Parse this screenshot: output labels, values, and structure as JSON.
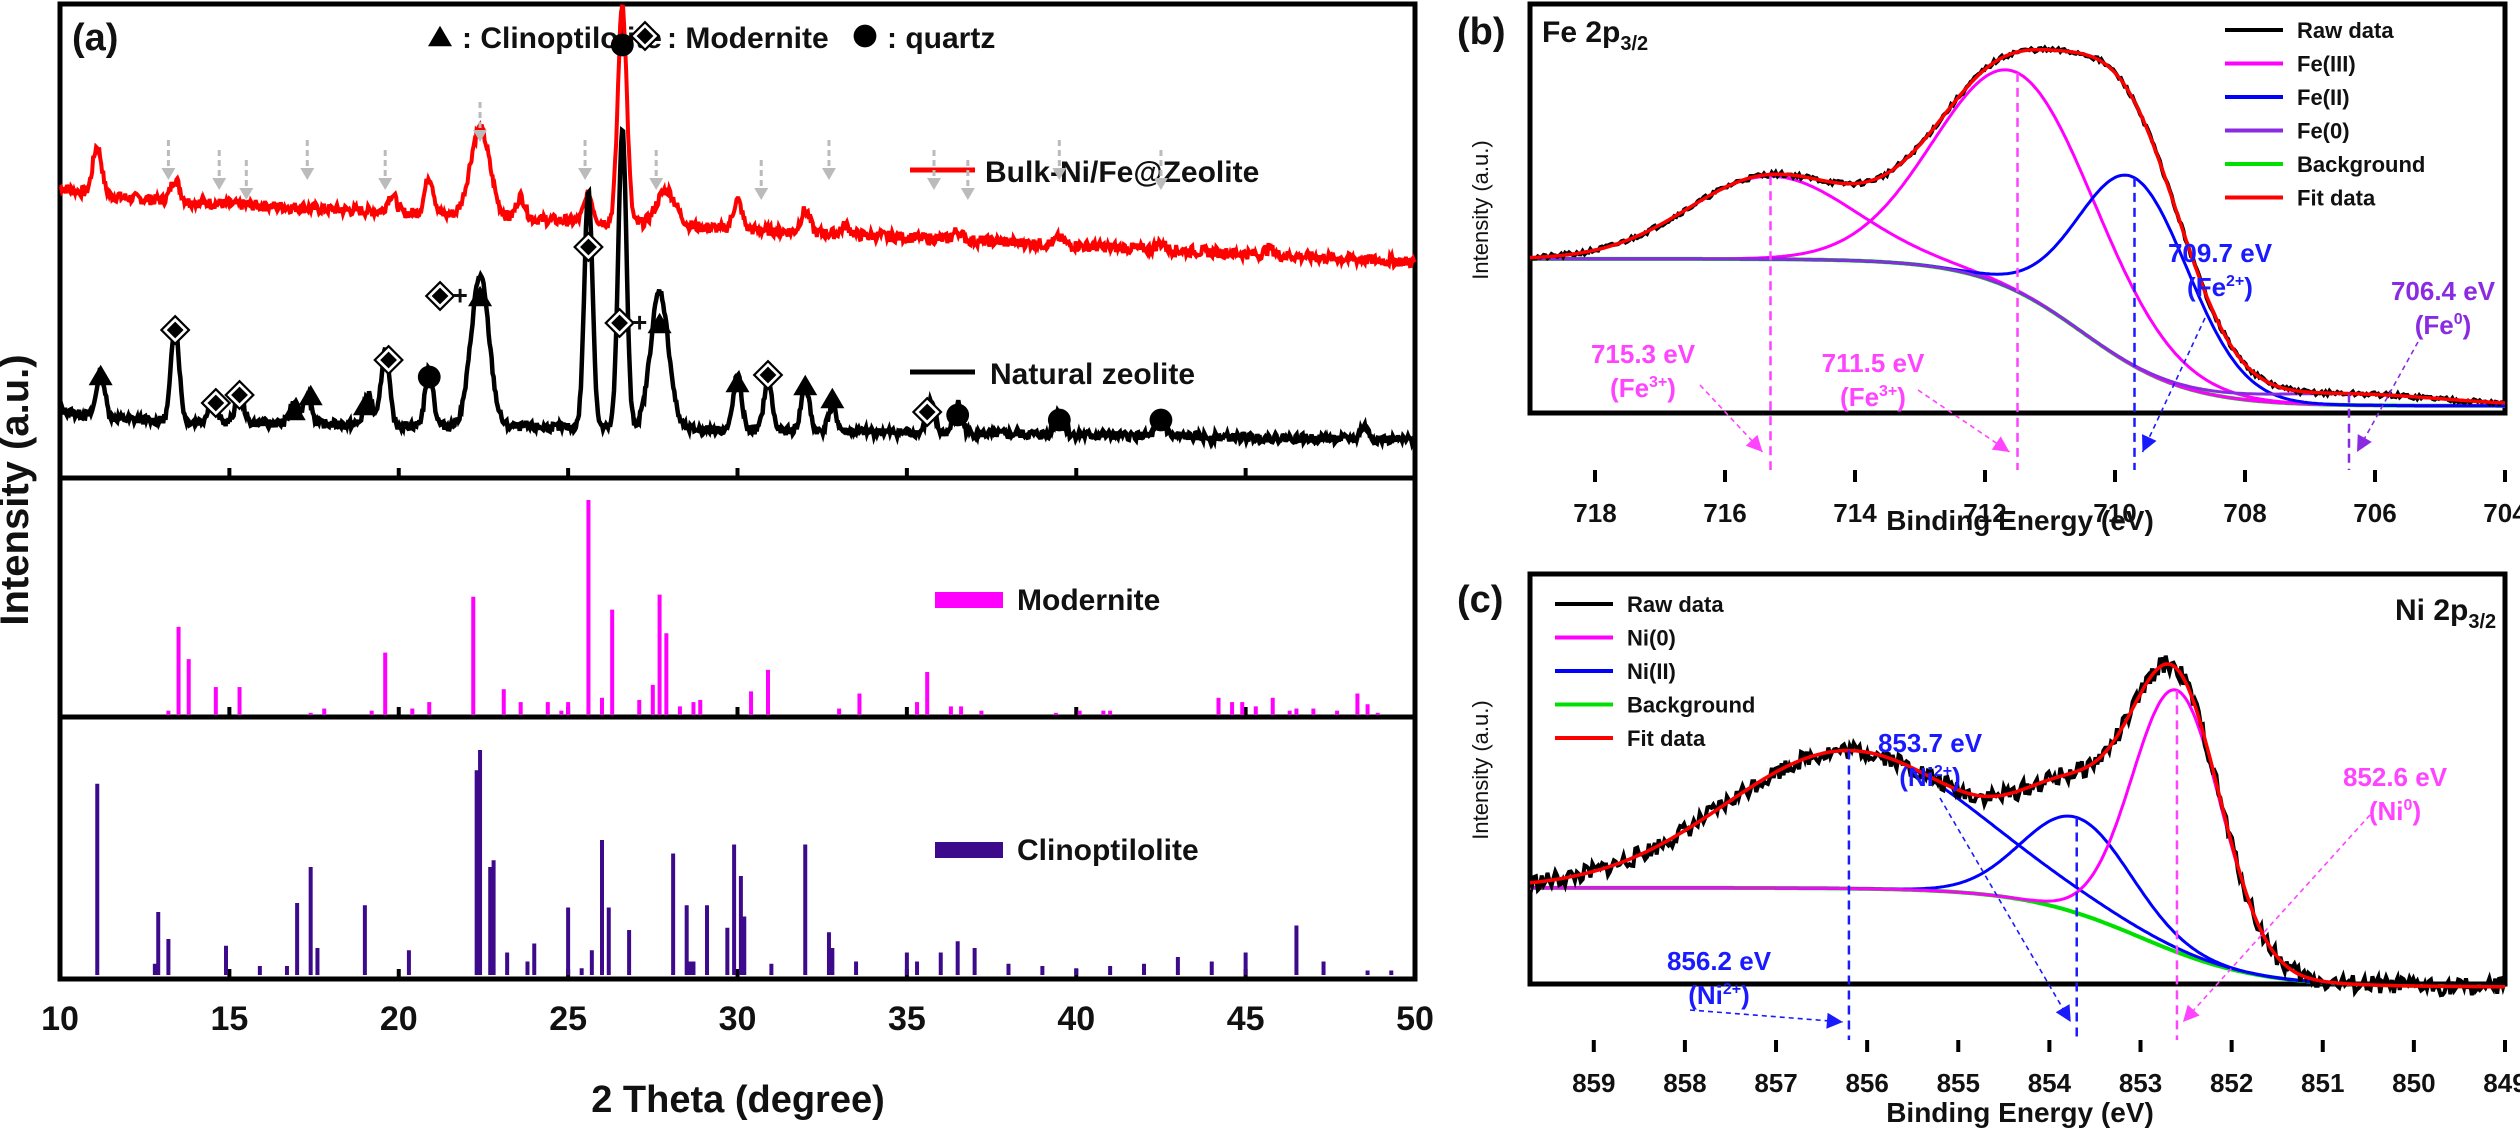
{
  "chart_data": [
    {
      "panel": "(a)",
      "type": "line",
      "title": "",
      "xlabel": "2 Theta (degree)",
      "ylabel": "Intensity (a.u.)",
      "xlim": [
        10,
        50
      ],
      "xticks": [
        10,
        15,
        20,
        25,
        30,
        35,
        40,
        45,
        50
      ],
      "grid": false,
      "marker_legend": [
        {
          "symbol": "triangle",
          "label": ": Clinoptilolite"
        },
        {
          "symbol": "diamond",
          "label": ": Modernite"
        },
        {
          "symbol": "circle",
          "label": ": quartz"
        }
      ],
      "series": [
        {
          "name": "Bulk-Ni/Fe@Zeolite",
          "color": "#ff0000",
          "peaks": [
            [
              11.1,
              0.22
            ],
            [
              13.4,
              0.1
            ],
            [
              19.8,
              0.08
            ],
            [
              20.9,
              0.17
            ],
            [
              22.4,
              0.4
            ],
            [
              23.6,
              0.1
            ],
            [
              25.6,
              0.12
            ],
            [
              26.6,
              1.0
            ],
            [
              27.9,
              0.16
            ],
            [
              30.0,
              0.13
            ],
            [
              32.0,
              0.1
            ],
            [
              33.2,
              0.04
            ],
            [
              36.5,
              0.04
            ],
            [
              39.5,
              0.03
            ],
            [
              42.5,
              0.03
            ],
            [
              45.7,
              0.03
            ]
          ],
          "baseline_start": 0.3,
          "baseline_end": 0.0,
          "arrow_markers_2theta": [
            13.2,
            14.7,
            15.5,
            17.3,
            19.6,
            22.4,
            25.5,
            27.6,
            30.7,
            32.7,
            35.8,
            36.8,
            39.5,
            42.5
          ]
        },
        {
          "name": "Natural zeolite",
          "color": "#000000",
          "peaks": [
            [
              11.2,
              0.18
            ],
            [
              13.4,
              0.38
            ],
            [
              14.5,
              0.1
            ],
            [
              15.3,
              0.12
            ],
            [
              16.9,
              0.08
            ],
            [
              17.3,
              0.12
            ],
            [
              19.1,
              0.12
            ],
            [
              19.6,
              0.3
            ],
            [
              20.9,
              0.22
            ],
            [
              22.4,
              0.6
            ],
            [
              25.6,
              0.95
            ],
            [
              26.6,
              1.2
            ],
            [
              27.7,
              0.55
            ],
            [
              30.0,
              0.22
            ],
            [
              30.9,
              0.2
            ],
            [
              32.0,
              0.18
            ],
            [
              32.8,
              0.1
            ],
            [
              35.7,
              0.12
            ],
            [
              36.5,
              0.12
            ],
            [
              39.5,
              0.1
            ],
            [
              42.5,
              0.08
            ],
            [
              48.5,
              0.05
            ]
          ],
          "baseline_start": 0.08,
          "baseline_end": 0.0,
          "markers": [
            {
              "x": 11.2,
              "symbols": [
                "triangle"
              ]
            },
            {
              "x": 13.4,
              "symbols": [
                "diamond"
              ]
            },
            {
              "x": 14.6,
              "symbols": [
                "diamond"
              ]
            },
            {
              "x": 15.3,
              "symbols": [
                "diamond"
              ]
            },
            {
              "x": 16.9,
              "symbols": [
                "triangle"
              ]
            },
            {
              "x": 17.4,
              "symbols": [
                "triangle"
              ]
            },
            {
              "x": 19.0,
              "symbols": [
                "triangle"
              ]
            },
            {
              "x": 19.7,
              "symbols": [
                "diamond"
              ]
            },
            {
              "x": 20.9,
              "symbols": [
                "circle"
              ]
            },
            {
              "x": 22.4,
              "symbols": [
                "diamond",
                "+",
                "triangle"
              ]
            },
            {
              "x": 25.6,
              "symbols": [
                "diamond"
              ]
            },
            {
              "x": 26.6,
              "symbols": [
                "circle"
              ]
            },
            {
              "x": 27.7,
              "symbols": [
                "diamond",
                "+",
                "triangle"
              ]
            },
            {
              "x": 30.0,
              "symbols": [
                "triangle"
              ]
            },
            {
              "x": 30.9,
              "symbols": [
                "diamond"
              ]
            },
            {
              "x": 32.0,
              "symbols": [
                "triangle"
              ]
            },
            {
              "x": 32.8,
              "symbols": [
                "triangle"
              ]
            },
            {
              "x": 35.6,
              "symbols": [
                "diamond"
              ]
            },
            {
              "x": 36.5,
              "symbols": [
                "circle"
              ]
            },
            {
              "x": 39.5,
              "symbols": [
                "circle"
              ]
            },
            {
              "x": 42.5,
              "symbols": [
                "circle"
              ]
            }
          ]
        }
      ],
      "reference_patterns": [
        {
          "name": "Modernite",
          "color": "#ff00ff",
          "type": "stick",
          "sticks": [
            [
              13.2,
              0.02
            ],
            [
              13.5,
              0.41
            ],
            [
              13.8,
              0.26
            ],
            [
              14.6,
              0.13
            ],
            [
              15.3,
              0.13
            ],
            [
              17.4,
              0.01
            ],
            [
              17.8,
              0.03
            ],
            [
              19.2,
              0.02
            ],
            [
              19.6,
              0.29
            ],
            [
              20.4,
              0.03
            ],
            [
              20.9,
              0.06
            ],
            [
              22.2,
              0.55
            ],
            [
              23.1,
              0.12
            ],
            [
              23.6,
              0.06
            ],
            [
              24.4,
              0.06
            ],
            [
              24.8,
              0.02
            ],
            [
              25.0,
              0.06
            ],
            [
              25.6,
              1.0
            ],
            [
              26.0,
              0.08
            ],
            [
              26.3,
              0.49
            ],
            [
              27.1,
              0.07
            ],
            [
              27.5,
              0.14
            ],
            [
              27.7,
              0.56
            ],
            [
              27.9,
              0.38
            ],
            [
              28.3,
              0.04
            ],
            [
              28.7,
              0.06
            ],
            [
              28.9,
              0.07
            ],
            [
              30.4,
              0.11
            ],
            [
              30.9,
              0.21
            ],
            [
              33.0,
              0.03
            ],
            [
              33.6,
              0.1
            ],
            [
              35.3,
              0.06
            ],
            [
              35.6,
              0.2
            ],
            [
              36.3,
              0.04
            ],
            [
              36.6,
              0.04
            ],
            [
              37.2,
              0.02
            ],
            [
              39.4,
              0.01
            ],
            [
              40.1,
              0.02
            ],
            [
              40.8,
              0.02
            ],
            [
              41.0,
              0.02
            ],
            [
              44.2,
              0.08
            ],
            [
              44.6,
              0.06
            ],
            [
              44.9,
              0.06
            ],
            [
              45.3,
              0.04
            ],
            [
              45.8,
              0.08
            ],
            [
              46.3,
              0.02
            ],
            [
              46.5,
              0.03
            ],
            [
              47.0,
              0.03
            ],
            [
              47.7,
              0.02
            ],
            [
              48.3,
              0.1
            ],
            [
              48.6,
              0.05
            ],
            [
              48.9,
              0.01
            ]
          ]
        },
        {
          "name": "Clinoptilolite",
          "color": "#3d0a8c",
          "type": "stick",
          "sticks": [
            [
              11.1,
              0.85
            ],
            [
              12.8,
              0.05
            ],
            [
              12.9,
              0.28
            ],
            [
              13.2,
              0.16
            ],
            [
              14.9,
              0.13
            ],
            [
              15.9,
              0.04
            ],
            [
              16.7,
              0.04
            ],
            [
              17.0,
              0.32
            ],
            [
              17.4,
              0.48
            ],
            [
              17.6,
              0.12
            ],
            [
              19.0,
              0.31
            ],
            [
              20.3,
              0.11
            ],
            [
              22.3,
              0.91
            ],
            [
              22.4,
              1.0
            ],
            [
              22.7,
              0.48
            ],
            [
              22.8,
              0.51
            ],
            [
              23.2,
              0.1
            ],
            [
              23.8,
              0.06
            ],
            [
              24.0,
              0.14
            ],
            [
              25.0,
              0.3
            ],
            [
              25.4,
              0.03
            ],
            [
              25.7,
              0.11
            ],
            [
              26.0,
              0.6
            ],
            [
              26.2,
              0.3
            ],
            [
              26.8,
              0.2
            ],
            [
              28.1,
              0.54
            ],
            [
              28.5,
              0.31
            ],
            [
              28.6,
              0.06
            ],
            [
              28.7,
              0.06
            ],
            [
              29.1,
              0.31
            ],
            [
              29.7,
              0.21
            ],
            [
              29.9,
              0.58
            ],
            [
              30.1,
              0.44
            ],
            [
              30.2,
              0.26
            ],
            [
              31.0,
              0.05
            ],
            [
              32.0,
              0.58
            ],
            [
              32.7,
              0.19
            ],
            [
              32.8,
              0.12
            ],
            [
              33.5,
              0.06
            ],
            [
              35.0,
              0.1
            ],
            [
              35.3,
              0.06
            ],
            [
              36.0,
              0.1
            ],
            [
              36.5,
              0.15
            ],
            [
              37.0,
              0.12
            ],
            [
              38.0,
              0.05
            ],
            [
              39.0,
              0.04
            ],
            [
              40.0,
              0.03
            ],
            [
              41.0,
              0.04
            ],
            [
              42.0,
              0.05
            ],
            [
              43.0,
              0.08
            ],
            [
              44.0,
              0.06
            ],
            [
              45.0,
              0.1
            ],
            [
              46.5,
              0.22
            ],
            [
              47.3,
              0.06
            ],
            [
              48.6,
              0.02
            ],
            [
              49.3,
              0.02
            ]
          ]
        }
      ]
    },
    {
      "panel": "(b)",
      "type": "line",
      "title": "Fe 2p",
      "title_sub": "3/2",
      "xlabel": "Binding Energy (eV)",
      "ylabel": "Intensity (a.u.)",
      "xlim": [
        719,
        704
      ],
      "x_reversed": true,
      "xticks": [
        718,
        716,
        714,
        712,
        710,
        708,
        706,
        704
      ],
      "grid": false,
      "legend_position": "top-right",
      "legend": [
        {
          "label": "Raw data",
          "color": "#000000"
        },
        {
          "label": "Fe(III)",
          "color": "#ff00ff"
        },
        {
          "label": "Fe(II)",
          "color": "#0000ff"
        },
        {
          "label": "Fe(0)",
          "color": "#8a2be2"
        },
        {
          "label": "Background",
          "color": "#00e000"
        },
        {
          "label": "Fit data",
          "color": "#ff0000"
        }
      ],
      "components": [
        {
          "name": "Fe(III)",
          "center": 715.3,
          "height": 0.22,
          "fwhm": 3.0,
          "color": "#ff00ff"
        },
        {
          "name": "Fe(III)",
          "center": 711.5,
          "height": 0.58,
          "fwhm": 2.9,
          "color": "#ff00ff"
        },
        {
          "name": "Fe(II)",
          "center": 709.7,
          "height": 0.5,
          "fwhm": 2.0,
          "color": "#0000ff"
        },
        {
          "name": "Fe(0)",
          "center": 706.4,
          "height": 0.03,
          "fwhm": 3.4,
          "color": "#8a2be2"
        }
      ],
      "background": {
        "high_be_level": 0.56,
        "low_be_level": 0.17,
        "step_center": 710.5,
        "step_width": 1.6
      },
      "ylim": [
        0,
        1.22
      ],
      "annotations": [
        {
          "text": "715.3 eV",
          "sub": "(Fe3+)",
          "x": 715.3,
          "color": "#ff44ff"
        },
        {
          "text": "711.5 eV",
          "sub": "(Fe3+)",
          "x": 711.5,
          "color": "#ff44ff"
        },
        {
          "text": "709.7 eV",
          "sub": "(Fe2+)",
          "x": 709.7,
          "color": "#1a1aff"
        },
        {
          "text": "706.4 eV",
          "sub": "(Fe0)",
          "x": 706.4,
          "color": "#8a2be2"
        }
      ]
    },
    {
      "panel": "(c)",
      "type": "line",
      "title": "Ni 2p",
      "title_sub": "3/2",
      "xlabel": "Binding Energy (eV)",
      "ylabel": "Intensity (a.u.)",
      "xlim": [
        859.7,
        849
      ],
      "x_reversed": true,
      "xticks": [
        859,
        858,
        857,
        856,
        855,
        854,
        853,
        852,
        851,
        850,
        849
      ],
      "grid": false,
      "legend_position": "top-left",
      "legend": [
        {
          "label": "Raw data",
          "color": "#000000"
        },
        {
          "label": "Ni(0)",
          "color": "#ff00ff"
        },
        {
          "label": "Ni(II)",
          "color": "#0000ff"
        },
        {
          "label": "Background",
          "color": "#00e000"
        },
        {
          "label": "Fit data",
          "color": "#ff0000"
        }
      ],
      "components": [
        {
          "name": "Ni(II)",
          "center": 856.2,
          "height": 0.39,
          "fwhm": 3.2,
          "color": "#0000ff"
        },
        {
          "name": "Ni(II)",
          "center": 853.7,
          "height": 0.27,
          "fwhm": 1.4,
          "color": "#0000ff"
        },
        {
          "name": "Ni(0)",
          "center": 852.6,
          "height": 0.74,
          "fwhm": 1.15,
          "color": "#ff00ff"
        }
      ],
      "background": {
        "high_be_level": 0.43,
        "low_be_level": 0.15,
        "step_center": 853.0,
        "step_width": 1.3
      },
      "ylim": [
        0,
        1.3
      ],
      "annotations": [
        {
          "text": "856.2 eV",
          "sub": "(Ni2+)",
          "x": 856.2,
          "color": "#1a1aff"
        },
        {
          "text": "853.7 eV",
          "sub": "(Ni2+)",
          "x": 853.7,
          "color": "#1a1aff"
        },
        {
          "text": "852.6 eV",
          "sub": "(Ni0)",
          "x": 852.6,
          "color": "#ff44ff"
        }
      ]
    }
  ],
  "labels": {
    "panel_a": "(a)",
    "panel_b": "(b)",
    "panel_c": "(c)",
    "a_xlabel": "2 Theta (degree)",
    "a_ylabel": "Intensity (a.u.)",
    "b_xlabel": "Binding Energy (eV)",
    "b_ylabel": "Intensity (a.u.)",
    "c_xlabel": "Binding Energy (eV)",
    "c_ylabel": "Intensity (a.u.)",
    "b_title": "Fe 2p",
    "b_title_sub": "3/2",
    "c_title": "Ni 2p",
    "c_title_sub": "3/2"
  }
}
